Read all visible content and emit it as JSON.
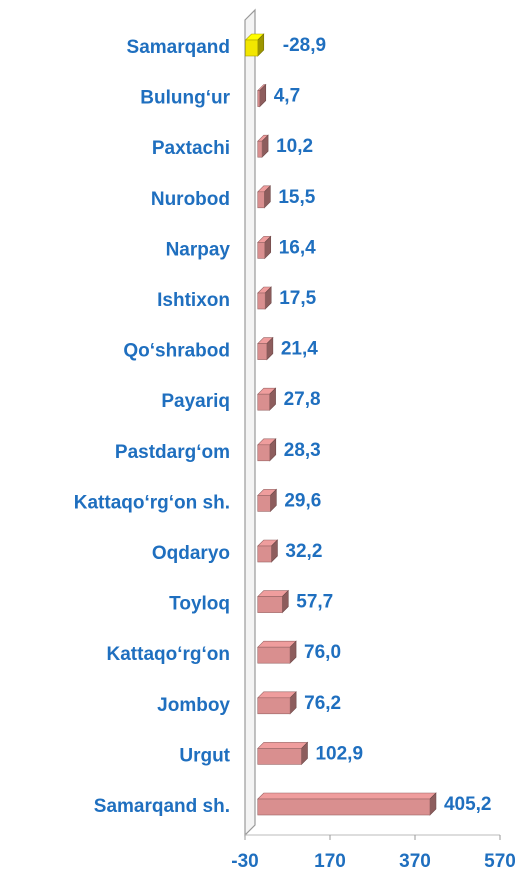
{
  "chart_data": {
    "type": "bar",
    "orientation": "horizontal",
    "categories": [
      "Samarqand",
      "Bulung‘ur",
      "Paxtachi",
      "Nurobod",
      "Narpay",
      "Ishtixon",
      "Qo‘shrabod",
      "Payariq",
      "Pastdarg‘om",
      "Kattaqo‘rg‘on sh.",
      "Oqdaryo",
      "Toyloq",
      "Kattaqo‘rg‘on",
      "Jomboy",
      "Urgut",
      "Samarqand sh."
    ],
    "values": [
      -28.9,
      4.7,
      10.2,
      15.5,
      16.4,
      17.5,
      21.4,
      27.8,
      28.3,
      29.6,
      32.2,
      57.7,
      76.0,
      76.2,
      102.9,
      405.2
    ],
    "value_labels": [
      "-28,9",
      "4,7",
      "10,2",
      "15,5",
      "16,4",
      "17,5",
      "21,4",
      "27,8",
      "28,3",
      "29,6",
      "32,2",
      "57,7",
      "76,0",
      "76,2",
      "102,9",
      "405,2"
    ],
    "colors": [
      "#f2e600",
      "#d98f8f",
      "#d98f8f",
      "#d98f8f",
      "#d98f8f",
      "#d98f8f",
      "#d98f8f",
      "#d98f8f",
      "#d98f8f",
      "#d98f8f",
      "#d98f8f",
      "#d98f8f",
      "#d98f8f",
      "#d98f8f",
      "#d98f8f",
      "#d98f8f"
    ],
    "xlim": [
      -30,
      570
    ],
    "xticks": [
      -30,
      170,
      370,
      570
    ]
  }
}
